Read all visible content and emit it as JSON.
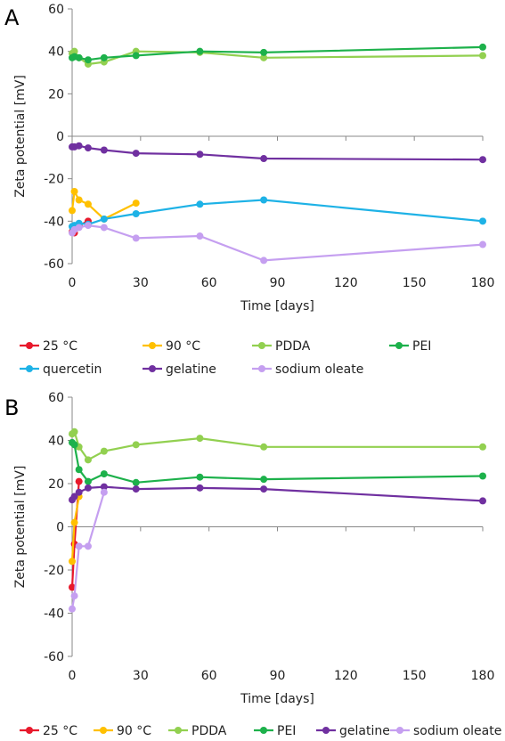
{
  "chart_data": [
    {
      "type": "line",
      "panel_label": "A",
      "xlabel": "Time [days]",
      "ylabel": "Zeta potential [mV]",
      "xlim": [
        0,
        180
      ],
      "ylim": [
        -60,
        60
      ],
      "xticks": [
        0,
        30,
        60,
        90,
        120,
        150,
        180
      ],
      "yticks": [
        -60,
        -40,
        -20,
        0,
        20,
        40,
        60
      ],
      "grid": false,
      "legend_position": "bottom",
      "series": [
        {
          "name": "25 °C",
          "color": "#e8192c",
          "x": [
            0,
            1,
            3,
            7
          ],
          "y": [
            -45,
            -45.5,
            -42,
            -40
          ]
        },
        {
          "name": "90 °C",
          "color": "#ffc000",
          "x": [
            0,
            1,
            3,
            7,
            14,
            28
          ],
          "y": [
            -35,
            -26,
            -30,
            -32,
            -39,
            -31.5
          ]
        },
        {
          "name": "PDDA",
          "color": "#92d050",
          "x": [
            0,
            1,
            3,
            7,
            14,
            28,
            56,
            84,
            180
          ],
          "y": [
            39,
            40,
            37,
            34,
            35,
            40,
            39.5,
            37,
            38
          ]
        },
        {
          "name": "PEI",
          "color": "#1db14b",
          "x": [
            0,
            1,
            3,
            7,
            14,
            28,
            56,
            84,
            180
          ],
          "y": [
            37,
            37.5,
            37,
            36,
            37,
            38,
            40,
            39.5,
            42
          ]
        },
        {
          "name": "quercetin",
          "color": "#1eb2e6",
          "x": [
            0,
            1,
            3,
            7,
            14,
            28,
            56,
            84,
            180
          ],
          "y": [
            -42.5,
            -42,
            -41,
            -41.5,
            -39,
            -36.5,
            -32,
            -30,
            -40
          ]
        },
        {
          "name": "gelatine",
          "color": "#7030a0",
          "x": [
            0,
            1,
            3,
            7,
            14,
            28,
            56,
            84,
            180
          ],
          "y": [
            -5,
            -5,
            -4.5,
            -5.5,
            -6.5,
            -8,
            -8.5,
            -10.5,
            -11
          ]
        },
        {
          "name": "sodium oleate",
          "color": "#c59ff0",
          "x": [
            0,
            1,
            3,
            7,
            14,
            28,
            56,
            84,
            180
          ],
          "y": [
            -45.5,
            -44,
            -43,
            -42,
            -43,
            -48,
            -47,
            -58.5,
            -51
          ]
        }
      ]
    },
    {
      "type": "line",
      "panel_label": "B",
      "xlabel": "Time [days]",
      "ylabel": "Zeta potential [mV]",
      "xlim": [
        0,
        180
      ],
      "ylim": [
        -60,
        60
      ],
      "xticks": [
        0,
        30,
        60,
        90,
        120,
        150,
        180
      ],
      "yticks": [
        -60,
        -40,
        -20,
        0,
        20,
        40,
        60
      ],
      "grid": false,
      "legend_position": "bottom",
      "series": [
        {
          "name": "25 °C",
          "color": "#e8192c",
          "x": [
            0,
            1,
            3
          ],
          "y": [
            -28,
            -8,
            21
          ]
        },
        {
          "name": "90 °C",
          "color": "#ffc000",
          "x": [
            0,
            1,
            3
          ],
          "y": [
            -16,
            2,
            14
          ]
        },
        {
          "name": "PDDA",
          "color": "#92d050",
          "x": [
            0,
            1,
            3,
            7,
            14,
            28,
            56,
            84,
            180
          ],
          "y": [
            43,
            44,
            37,
            31,
            35,
            38,
            41,
            37,
            37
          ]
        },
        {
          "name": "PEI",
          "color": "#1db14b",
          "x": [
            0,
            1,
            3,
            7,
            14,
            28,
            56,
            84,
            180
          ],
          "y": [
            39,
            38,
            26.5,
            21,
            24.5,
            20.5,
            23,
            22,
            23.5
          ]
        },
        {
          "name": "gelatine",
          "color": "#7030a0",
          "x": [
            0,
            1,
            3,
            7,
            14,
            28,
            56,
            84,
            180
          ],
          "y": [
            12.5,
            14,
            16,
            18,
            18.5,
            17.5,
            18,
            17.5,
            12
          ]
        },
        {
          "name": "sodium oleate",
          "color": "#c59ff0",
          "x": [
            0,
            1,
            3,
            7,
            14,
            28
          ],
          "y": [
            -38,
            -32,
            -9,
            -9,
            16,
            null
          ]
        }
      ]
    }
  ]
}
